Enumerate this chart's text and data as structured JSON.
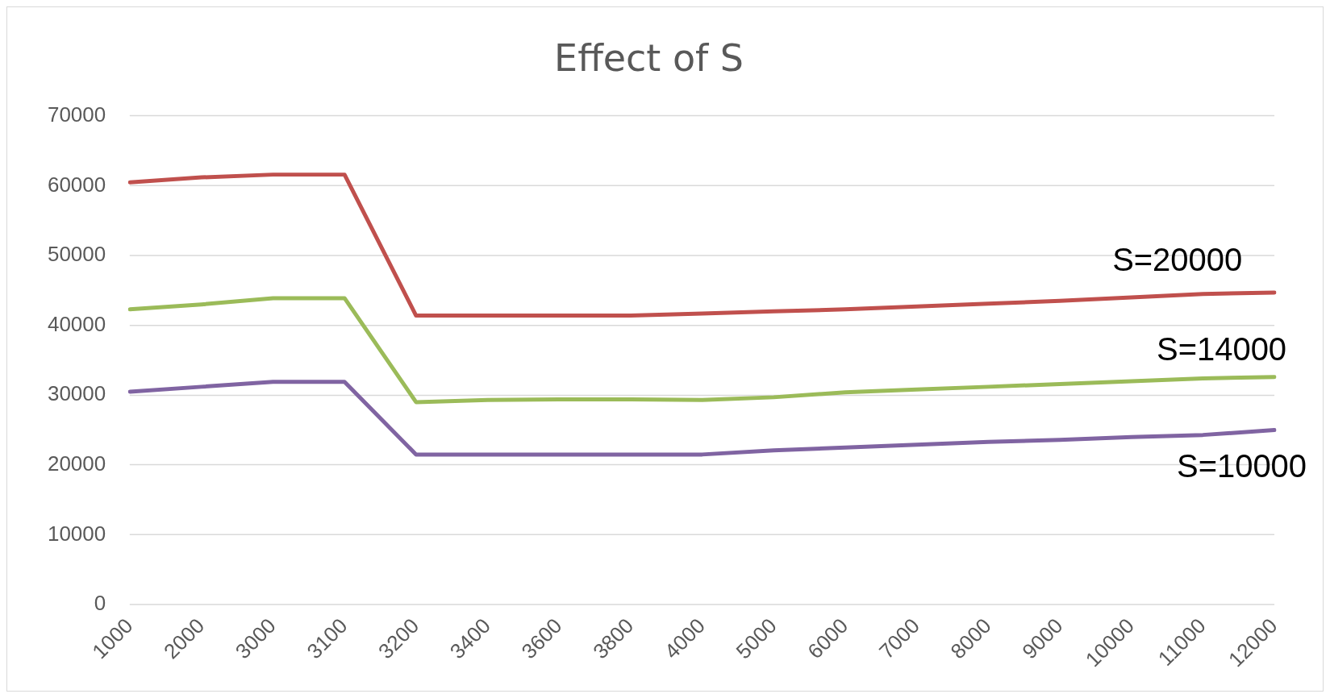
{
  "chart_data": {
    "type": "line",
    "title": "Effect of S",
    "categories": [
      "1000",
      "2000",
      "3000",
      "3100",
      "3200",
      "3400",
      "3600",
      "3800",
      "4000",
      "5000",
      "6000",
      "7000",
      "8000",
      "9000",
      "10000",
      "11000",
      "12000"
    ],
    "series": [
      {
        "name": "S=20000",
        "color": "#c0504d",
        "values": [
          60500,
          61200,
          61600,
          61600,
          41400,
          41400,
          41400,
          41400,
          41700,
          42000,
          42300,
          42700,
          43100,
          43500,
          44000,
          44500,
          44700
        ]
      },
      {
        "name": "S=14000",
        "color": "#9bbb59",
        "values": [
          42300,
          43000,
          43900,
          43900,
          29000,
          29300,
          29400,
          29400,
          29300,
          29700,
          30400,
          30800,
          31200,
          31600,
          32000,
          32400,
          32600
        ]
      },
      {
        "name": "S=10000",
        "color": "#8064a2",
        "values": [
          30500,
          31200,
          31900,
          31900,
          21500,
          21500,
          21500,
          21500,
          21500,
          22100,
          22500,
          22900,
          23300,
          23600,
          24000,
          24300,
          25000
        ]
      }
    ],
    "ylim": [
      0,
      70000
    ],
    "yticks": [
      0,
      10000,
      20000,
      30000,
      40000,
      50000,
      60000,
      70000
    ],
    "grid": "y",
    "legend": false,
    "marker": "none",
    "line_style": "solid"
  }
}
